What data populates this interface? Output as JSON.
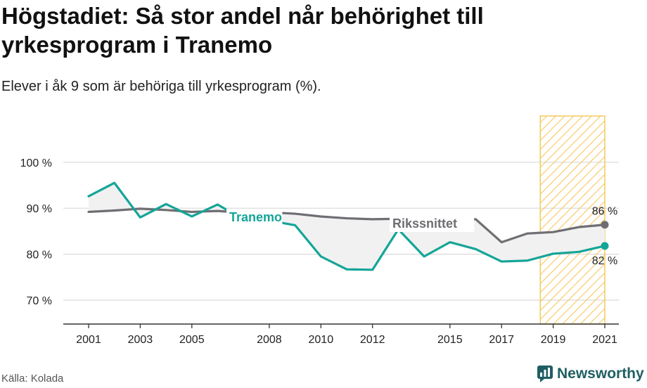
{
  "header": {
    "title": "Högstadiet: Så stor andel når behörighet till yrkesprogram i Tranemo",
    "subtitle": "Elever i åk 9 som är behöriga till yrkesprogram (%)."
  },
  "footer": {
    "source": "Källa: Kolada",
    "brand": "Newsworthy"
  },
  "colors": {
    "tranemo": "#14a598",
    "riket": "#6e6e73",
    "highlight": "#f6c85f",
    "fill": "#eeeeee",
    "brand": "#1f5f63"
  },
  "chart_data": {
    "type": "line",
    "x": [
      2001,
      2002,
      2003,
      2004,
      2005,
      2006,
      2007,
      2008,
      2009,
      2010,
      2011,
      2012,
      2013,
      2014,
      2015,
      2016,
      2017,
      2018,
      2019,
      2020,
      2021
    ],
    "series": [
      {
        "name": "Tranemo",
        "values": [
          92.6,
          95.5,
          88.0,
          90.9,
          88.2,
          90.8,
          87.5,
          87.3,
          86.3,
          79.5,
          76.7,
          76.6,
          85.4,
          79.5,
          82.6,
          81.1,
          78.4,
          78.6,
          80.1,
          80.5,
          81.8
        ],
        "end_label": "82 %"
      },
      {
        "name": "Rikssnittet",
        "values": [
          89.2,
          89.5,
          89.9,
          89.6,
          89.2,
          89.4,
          89.0,
          89.1,
          88.8,
          88.2,
          87.8,
          87.6,
          87.7,
          87.7,
          87.6,
          87.6,
          82.6,
          84.5,
          84.8,
          85.9,
          86.4
        ],
        "end_label": "86 %"
      }
    ],
    "xticks": [
      2001,
      2003,
      2005,
      2008,
      2010,
      2012,
      2015,
      2017,
      2019,
      2021
    ],
    "yticks": [
      70,
      80,
      90,
      100
    ],
    "ytick_labels": [
      "70 %",
      "80 %",
      "90 %",
      "100 %"
    ],
    "ylim": [
      65,
      110
    ],
    "xlim": [
      2000.0,
      2021.8
    ],
    "highlight_range": [
      2018.5,
      2021
    ],
    "grid": true
  }
}
